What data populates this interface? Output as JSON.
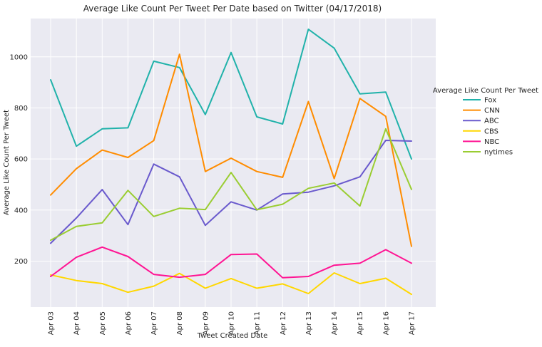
{
  "chart_data": {
    "type": "line",
    "title": "Average Like Count Per Tweet Per Date based on Twitter (04/17/2018)",
    "xlabel": "Tweet Created Date",
    "ylabel": "Average Like Count Per Tweet",
    "categories": [
      "Apr 03",
      "Apr 04",
      "Apr 05",
      "Apr 06",
      "Apr 07",
      "Apr 08",
      "Apr 09",
      "Apr 10",
      "Apr 11",
      "Apr 12",
      "Apr 13",
      "Apr 14",
      "Apr 15",
      "Apr 16",
      "Apr 17"
    ],
    "yticks": [
      200,
      400,
      600,
      800,
      1000
    ],
    "ylim": [
      20,
      1150
    ],
    "grid": true,
    "legend": {
      "title": "Average Like Count Per Tweet",
      "placement": "right"
    },
    "background_color": "#EAEAF2",
    "series": [
      {
        "name": "Fox",
        "color": "#20B2AA",
        "values": [
          910,
          650,
          718,
          722,
          983,
          958,
          774,
          1017,
          765,
          737,
          1108,
          1034,
          855,
          862,
          600
        ]
      },
      {
        "name": "CNN",
        "color": "#FF8C00",
        "values": [
          459,
          562,
          635,
          606,
          672,
          1010,
          551,
          603,
          551,
          528,
          825,
          523,
          837,
          767,
          258
        ]
      },
      {
        "name": "ABC",
        "color": "#6A5ACD",
        "values": [
          270,
          369,
          480,
          343,
          580,
          530,
          340,
          432,
          400,
          463,
          470,
          495,
          530,
          673,
          670
        ]
      },
      {
        "name": "CBS",
        "color": "#FFD700",
        "values": [
          146,
          124,
          112,
          78,
          102,
          152,
          94,
          132,
          94,
          111,
          73,
          154,
          112,
          133,
          70
        ]
      },
      {
        "name": "NBC",
        "color": "#FF1493",
        "values": [
          140,
          215,
          255,
          218,
          148,
          137,
          148,
          226,
          228,
          135,
          140,
          184,
          192,
          245,
          192
        ]
      },
      {
        "name": "nytimes",
        "color": "#9ACD32",
        "values": [
          282,
          336,
          350,
          477,
          375,
          407,
          402,
          547,
          401,
          423,
          485,
          506,
          416,
          718,
          481
        ]
      }
    ]
  }
}
